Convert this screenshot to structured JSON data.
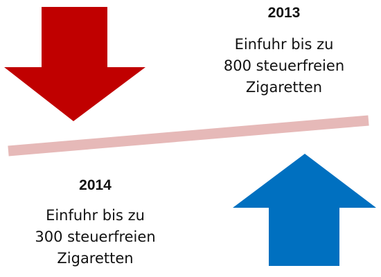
{
  "colors": {
    "down_arrow": "#c00000",
    "up_arrow": "#0070c0",
    "divider": "#e6b9b8"
  },
  "icons": {
    "down": "arrow-down-icon",
    "up": "arrow-up-icon"
  },
  "top_block": {
    "year": "2013",
    "line1": "Einfuhr bis zu",
    "line2": "800 steuerfreien",
    "line3": "Zigaretten"
  },
  "bottom_block": {
    "year": "2014",
    "line1": "Einfuhr bis zu",
    "line2": "300 steuerfreien",
    "line3": "Zigaretten"
  }
}
